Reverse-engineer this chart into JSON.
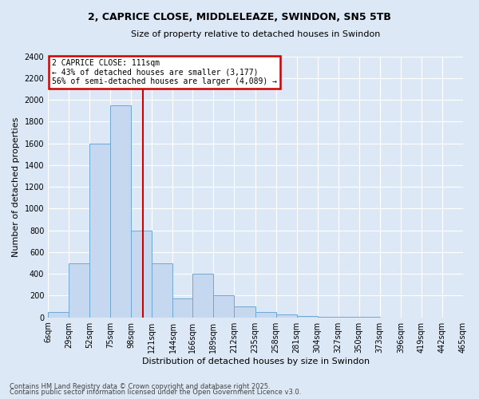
{
  "title": "2, CAPRICE CLOSE, MIDDLELEAZE, SWINDON, SN5 5TB",
  "subtitle": "Size of property relative to detached houses in Swindon",
  "xlabel": "Distribution of detached houses by size in Swindon",
  "ylabel": "Number of detached properties",
  "bin_labels": [
    "6sqm",
    "29sqm",
    "52sqm",
    "75sqm",
    "98sqm",
    "121sqm",
    "144sqm",
    "166sqm",
    "189sqm",
    "212sqm",
    "235sqm",
    "258sqm",
    "281sqm",
    "304sqm",
    "327sqm",
    "350sqm",
    "373sqm",
    "396sqm",
    "419sqm",
    "442sqm",
    "465sqm"
  ],
  "bin_edges": [
    6,
    29,
    52,
    75,
    98,
    121,
    144,
    166,
    189,
    212,
    235,
    258,
    281,
    304,
    327,
    350,
    373,
    396,
    419,
    442,
    465
  ],
  "values": [
    50,
    500,
    1600,
    1950,
    800,
    500,
    175,
    400,
    200,
    100,
    50,
    30,
    10,
    5,
    3,
    2,
    1,
    1,
    1,
    1
  ],
  "bar_color": "#c5d8ef",
  "bar_edge_color": "#6fa8d4",
  "property_size": 111,
  "property_label": "2 CAPRICE CLOSE: 111sqm",
  "annotation_line1": "← 43% of detached houses are smaller (3,177)",
  "annotation_line2": "56% of semi-detached houses are larger (4,089) →",
  "vline_color": "#cc0000",
  "annotation_box_edge": "#cc0000",
  "ylim": [
    0,
    2400
  ],
  "yticks": [
    0,
    200,
    400,
    600,
    800,
    1000,
    1200,
    1400,
    1600,
    1800,
    2000,
    2200,
    2400
  ],
  "footnote1": "Contains HM Land Registry data © Crown copyright and database right 2025.",
  "footnote2": "Contains public sector information licensed under the Open Government Licence v3.0.",
  "bg_color": "#dce8f5",
  "plot_bg_color": "#dce8f5",
  "grid_color": "#ffffff",
  "title_fontsize": 9,
  "subtitle_fontsize": 8,
  "ylabel_fontsize": 8,
  "xlabel_fontsize": 8,
  "tick_fontsize": 7,
  "annotation_fontsize": 7,
  "footnote_fontsize": 6
}
